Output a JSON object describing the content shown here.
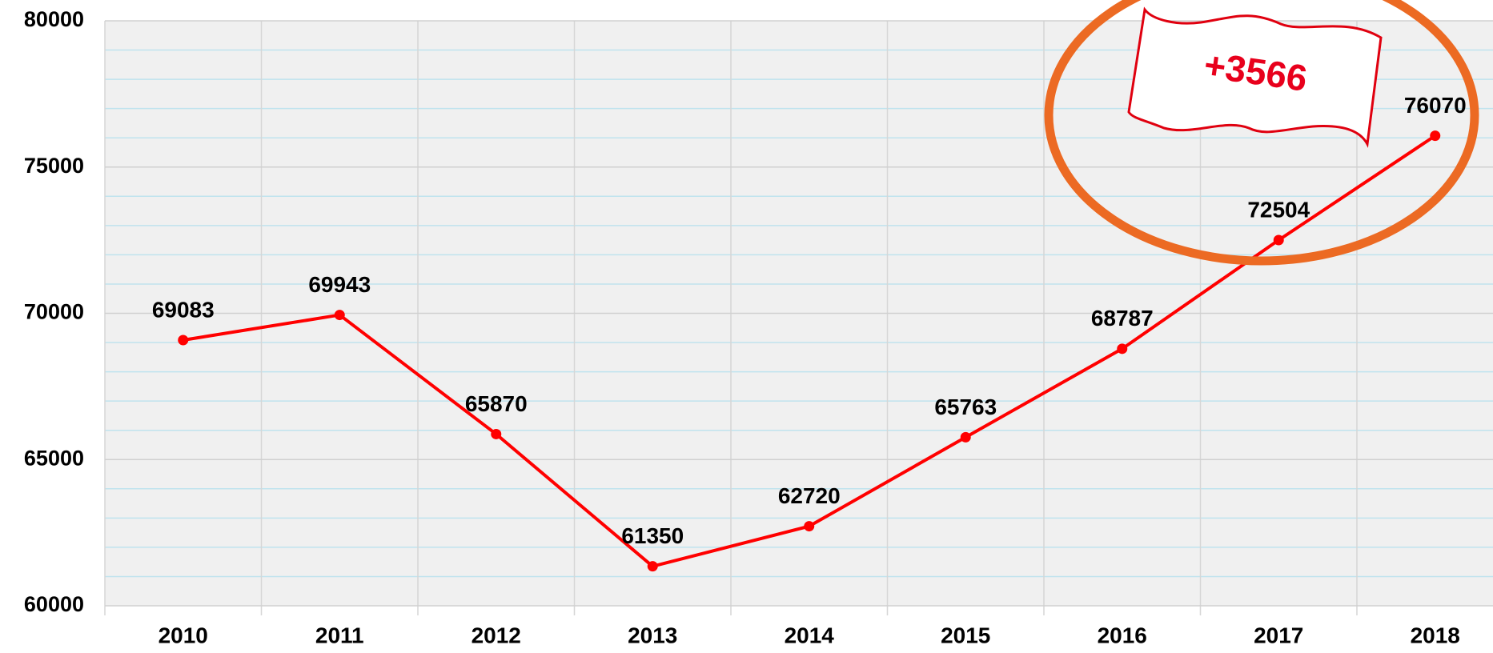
{
  "chart_data": {
    "type": "line",
    "categories": [
      "2010",
      "2011",
      "2012",
      "2013",
      "2014",
      "2015",
      "2016",
      "2017",
      "2018"
    ],
    "values": [
      69083,
      69943,
      65870,
      61350,
      62720,
      65763,
      68787,
      72504,
      76070
    ],
    "color": "#ff0000",
    "ylim": [
      60000,
      80000
    ],
    "yticks": [
      60000,
      65000,
      70000,
      75000,
      80000
    ],
    "grid": true,
    "annotation": "+3566"
  }
}
